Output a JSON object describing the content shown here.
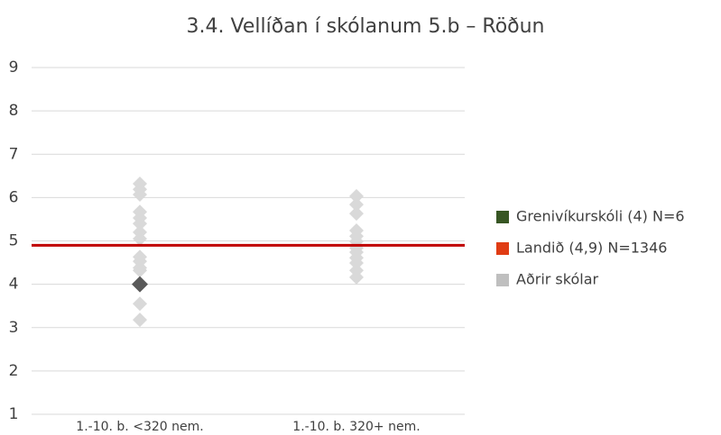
{
  "chart_data": {
    "type": "strip",
    "title": "3.4. Vellíðan í skólanum 5.b – Röðun",
    "categories": [
      "1.-10. b. <320 nem.",
      "1.-10. b. 320+ nem."
    ],
    "ylim": [
      1,
      9
    ],
    "yticks": [
      1,
      2,
      3,
      4,
      5,
      6,
      7,
      8,
      9
    ],
    "grid": true,
    "legend": "right",
    "series": [
      {
        "name": "Grenivíkurskóli (4) N=6",
        "color": "#595959",
        "legend_color": "#375623",
        "values": [
          4,
          null
        ]
      },
      {
        "name": "Landið (4,9) N=1346",
        "color": "#c00000",
        "legend_color": "#e03c14",
        "value": 4.9
      },
      {
        "name": "Aðrir skólar",
        "color": "#d9d9d9",
        "legend_color": "#bfbfbf",
        "values": [
          [
            6.32,
            6.19,
            6.07,
            5.67,
            5.53,
            5.4,
            5.2,
            5.05,
            4.63,
            4.53,
            4.38,
            4.32,
            3.55,
            3.18
          ],
          [
            6.03,
            5.84,
            5.63,
            5.24,
            5.11,
            4.99,
            4.84,
            4.74,
            4.61,
            4.49,
            4.32,
            4.16
          ]
        ]
      }
    ]
  }
}
